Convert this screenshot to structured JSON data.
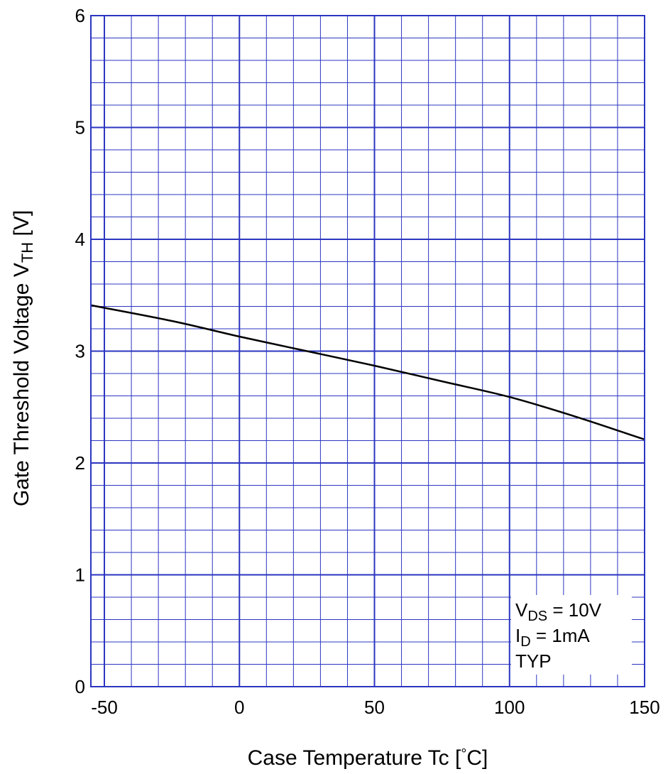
{
  "chart_data": {
    "type": "line",
    "title": "",
    "xlabel": {
      "main": "Case Temperature  Tc  [",
      "degree": "°",
      "unit_end": "C]"
    },
    "ylabel": {
      "main": "Gate Threshold Voltage  V",
      "sub": "TH",
      "unit": " [V]"
    },
    "xlim": [
      -55,
      150
    ],
    "ylim": [
      0,
      6
    ],
    "x_ticks": [
      "-50",
      "0",
      "50",
      "100",
      "150"
    ],
    "x_tick_values": [
      -50,
      0,
      50,
      100,
      150
    ],
    "y_ticks": [
      "0",
      "1",
      "2",
      "3",
      "4",
      "5",
      "6"
    ],
    "y_tick_values": [
      0,
      1,
      2,
      3,
      4,
      5,
      6
    ],
    "grid": true,
    "grid_color": "#2b35c0",
    "line_color": "#000000",
    "series": [
      {
        "x": [
          -55,
          -25,
          0,
          25,
          50,
          75,
          100,
          125,
          150
        ],
        "y": [
          3.41,
          3.27,
          3.13,
          3.0,
          2.87,
          2.73,
          2.59,
          2.41,
          2.21
        ]
      }
    ],
    "annotations": [
      {
        "main": "V",
        "sub": "DS",
        "rest": " = 10V"
      },
      {
        "main": "I",
        "sub": "D",
        "rest": " = 1mA"
      },
      {
        "main": "TYP",
        "sub": "",
        "rest": ""
      }
    ],
    "annotation_position": "bottom-right"
  }
}
